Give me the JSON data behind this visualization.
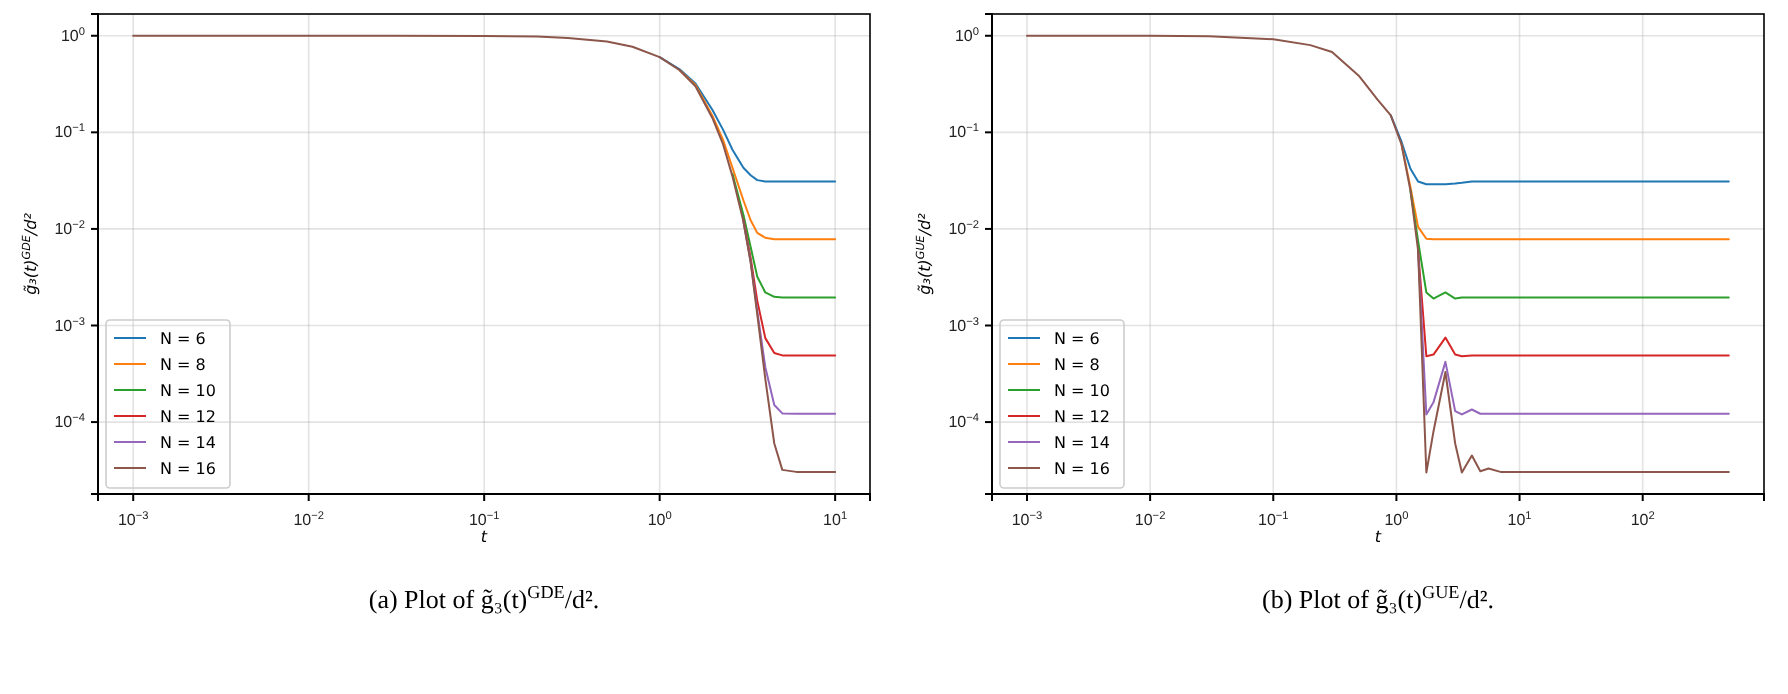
{
  "chart_data": [
    {
      "type": "line",
      "xlabel": "t",
      "ylabel": "g̃₃(t)$^{GDE}$/d²",
      "log": "xy",
      "grid": true,
      "legend": "bottom left",
      "annotations": [
        "(a) Plot of g̃₃(t)$^{GDE}$/d²."
      ],
      "x": [
        0.001,
        0.003,
        0.01,
        0.03,
        0.1,
        0.2,
        0.3,
        0.5,
        0.7,
        1,
        1.3,
        1.6,
        2,
        2.3,
        2.6,
        3,
        3.3,
        3.6,
        4,
        4.5,
        5,
        6,
        7,
        8.5,
        10
      ],
      "xlim": [
        0.00063,
        15.8
      ],
      "ylim": [
        1.8e-05,
        1.68
      ],
      "xticks": [
        {
          "value": 0.001,
          "label": "10$^{−3}$"
        },
        {
          "value": 0.01,
          "label": "10$^{−2}$"
        },
        {
          "value": 0.1,
          "label": "10$^{−1}$"
        },
        {
          "value": 1,
          "label": "10$^{0}$"
        },
        {
          "value": 10,
          "label": "10$^{1}$"
        }
      ],
      "yticks": [
        {
          "value": 0.0001,
          "label": "10$^{−4}$"
        },
        {
          "value": 0.001,
          "label": "10$^{−3}$"
        },
        {
          "value": 0.01,
          "label": "10$^{−2}$"
        },
        {
          "value": 0.1,
          "label": "10$^{−1}$"
        },
        {
          "value": 1,
          "label": "10$^{0}$"
        }
      ],
      "series": [
        {
          "name": "N = 6",
          "color": "#1f77b4",
          "values": [
            null,
            null,
            null,
            null,
            null,
            null,
            null,
            null,
            null,
            0.6,
            0.45,
            0.32,
            0.17,
            0.106,
            0.066,
            0.043,
            0.036,
            0.032,
            0.031,
            0.031,
            0.031,
            0.031,
            0.031,
            0.031,
            0.031
          ]
        },
        {
          "name": "N = 8",
          "color": "#ff7f0e",
          "values": [
            null,
            null,
            null,
            null,
            null,
            null,
            null,
            null,
            null,
            null,
            0.44,
            0.31,
            0.148,
            0.083,
            0.043,
            0.0198,
            0.0123,
            0.0091,
            0.0081,
            0.0078,
            0.0078,
            0.0078,
            0.0078,
            0.0078,
            0.0078
          ]
        },
        {
          "name": "N = 10",
          "color": "#2ca02c",
          "values": [
            null,
            null,
            null,
            null,
            null,
            null,
            null,
            null,
            null,
            null,
            null,
            null,
            null,
            null,
            0.037,
            0.014,
            0.0065,
            0.0032,
            0.0022,
            0.00198,
            0.00195,
            0.00195,
            0.00195,
            0.00195,
            0.00195
          ]
        },
        {
          "name": "N = 12",
          "color": "#d62728",
          "values": [
            null,
            null,
            null,
            null,
            null,
            null,
            null,
            null,
            null,
            null,
            null,
            null,
            null,
            null,
            null,
            0.0125,
            0.005,
            0.0018,
            0.00074,
            0.00052,
            0.00049,
            0.00049,
            0.00049,
            0.00049,
            0.00049
          ]
        },
        {
          "name": "N = 14",
          "color": "#9467bd",
          "values": [
            null,
            null,
            null,
            null,
            null,
            null,
            null,
            null,
            null,
            null,
            null,
            null,
            null,
            null,
            null,
            0.012,
            0.0046,
            0.0014,
            0.00037,
            0.00015,
            0.000123,
            0.000122,
            0.000122,
            0.000122,
            0.000122
          ]
        },
        {
          "name": "N = 16",
          "color": "#8c564b",
          "values": [
            1,
            1,
            1,
            1,
            0.995,
            0.98,
            0.95,
            0.87,
            0.77,
            0.6,
            0.44,
            0.3,
            0.14,
            0.075,
            0.035,
            0.012,
            0.0045,
            0.0013,
            0.00028,
            6e-05,
            3.2e-05,
            3.05e-05,
            3.05e-05,
            3.05e-05,
            3.05e-05
          ]
        }
      ]
    },
    {
      "type": "line",
      "xlabel": "t",
      "ylabel": "g̃₃(t)$^{GUE}$/d²",
      "log": "xy",
      "grid": true,
      "legend": "bottom left",
      "annotations": [
        "(b) Plot of g̃₃(t)$^{GUE}$/d²."
      ],
      "x": [
        0.001,
        0.003,
        0.01,
        0.03,
        0.1,
        0.2,
        0.3,
        0.5,
        0.7,
        0.9,
        1.1,
        1.3,
        1.5,
        1.75,
        2.0,
        2.5,
        3.0,
        3.4,
        4.1,
        4.8,
        5.6,
        7,
        10,
        30,
        100,
        500
      ],
      "xlim": [
        0.00052,
        966
      ],
      "ylim": [
        1.8e-05,
        1.68
      ],
      "xticks": [
        {
          "value": 0.001,
          "label": "10$^{−3}$"
        },
        {
          "value": 0.01,
          "label": "10$^{−2}$"
        },
        {
          "value": 0.1,
          "label": "10$^{−1}$"
        },
        {
          "value": 1,
          "label": "10$^{0}$"
        },
        {
          "value": 10,
          "label": "10$^{1}$"
        },
        {
          "value": 100,
          "label": "10$^{2}$"
        }
      ],
      "yticks": [
        {
          "value": 0.0001,
          "label": "10$^{−4}$"
        },
        {
          "value": 0.001,
          "label": "10$^{−3}$"
        },
        {
          "value": 0.01,
          "label": "10$^{−2}$"
        },
        {
          "value": 0.1,
          "label": "10$^{−1}$"
        },
        {
          "value": 1,
          "label": "10$^{0}$"
        }
      ],
      "series": [
        {
          "name": "N = 6",
          "color": "#1f77b4",
          "values": [
            null,
            null,
            null,
            null,
            null,
            null,
            null,
            null,
            null,
            0.15,
            0.08,
            0.042,
            0.031,
            0.029,
            0.029,
            0.029,
            0.0295,
            0.03,
            0.031,
            0.031,
            0.031,
            0.031,
            0.031,
            0.031,
            0.031,
            0.031
          ]
        },
        {
          "name": "N = 8",
          "color": "#ff7f0e",
          "values": [
            null,
            null,
            null,
            null,
            null,
            null,
            null,
            null,
            null,
            null,
            0.075,
            0.027,
            0.0105,
            0.0079,
            0.0078,
            0.0078,
            0.0078,
            0.0078,
            0.0078,
            0.0078,
            0.0078,
            0.0078,
            0.0078,
            0.0078,
            0.0078,
            0.0078
          ]
        },
        {
          "name": "N = 10",
          "color": "#2ca02c",
          "values": [
            null,
            null,
            null,
            null,
            null,
            null,
            null,
            null,
            null,
            null,
            null,
            0.025,
            0.0075,
            0.0022,
            0.0019,
            0.0022,
            0.0019,
            0.00195,
            0.00195,
            0.00195,
            0.00195,
            0.00195,
            0.00195,
            0.00195,
            0.00195,
            0.00195
          ]
        },
        {
          "name": "N = 12",
          "color": "#d62728",
          "values": [
            null,
            null,
            null,
            null,
            null,
            null,
            null,
            null,
            null,
            null,
            null,
            null,
            0.006,
            0.00048,
            0.0005,
            0.00075,
            0.0005,
            0.00048,
            0.00049,
            0.00049,
            0.00049,
            0.00049,
            0.00049,
            0.00049,
            0.00049,
            0.00049
          ]
        },
        {
          "name": "N = 14",
          "color": "#9467bd",
          "values": [
            null,
            null,
            null,
            null,
            null,
            null,
            null,
            null,
            null,
            null,
            null,
            null,
            0.006,
            0.00012,
            0.00016,
            0.00042,
            0.00013,
            0.00012,
            0.000135,
            0.000122,
            0.000122,
            0.000122,
            0.000122,
            0.000122,
            0.000122,
            0.000122
          ]
        },
        {
          "name": "N = 16",
          "color": "#8c564b",
          "values": [
            1,
            1,
            1,
            0.99,
            0.92,
            0.8,
            0.68,
            0.38,
            0.22,
            0.15,
            0.075,
            0.025,
            0.006,
            3e-05,
            8e-05,
            0.00033,
            6e-05,
            3e-05,
            4.5e-05,
            3.1e-05,
            3.3e-05,
            3.05e-05,
            3.05e-05,
            3.05e-05,
            3.05e-05,
            3.05e-05
          ]
        }
      ]
    }
  ]
}
